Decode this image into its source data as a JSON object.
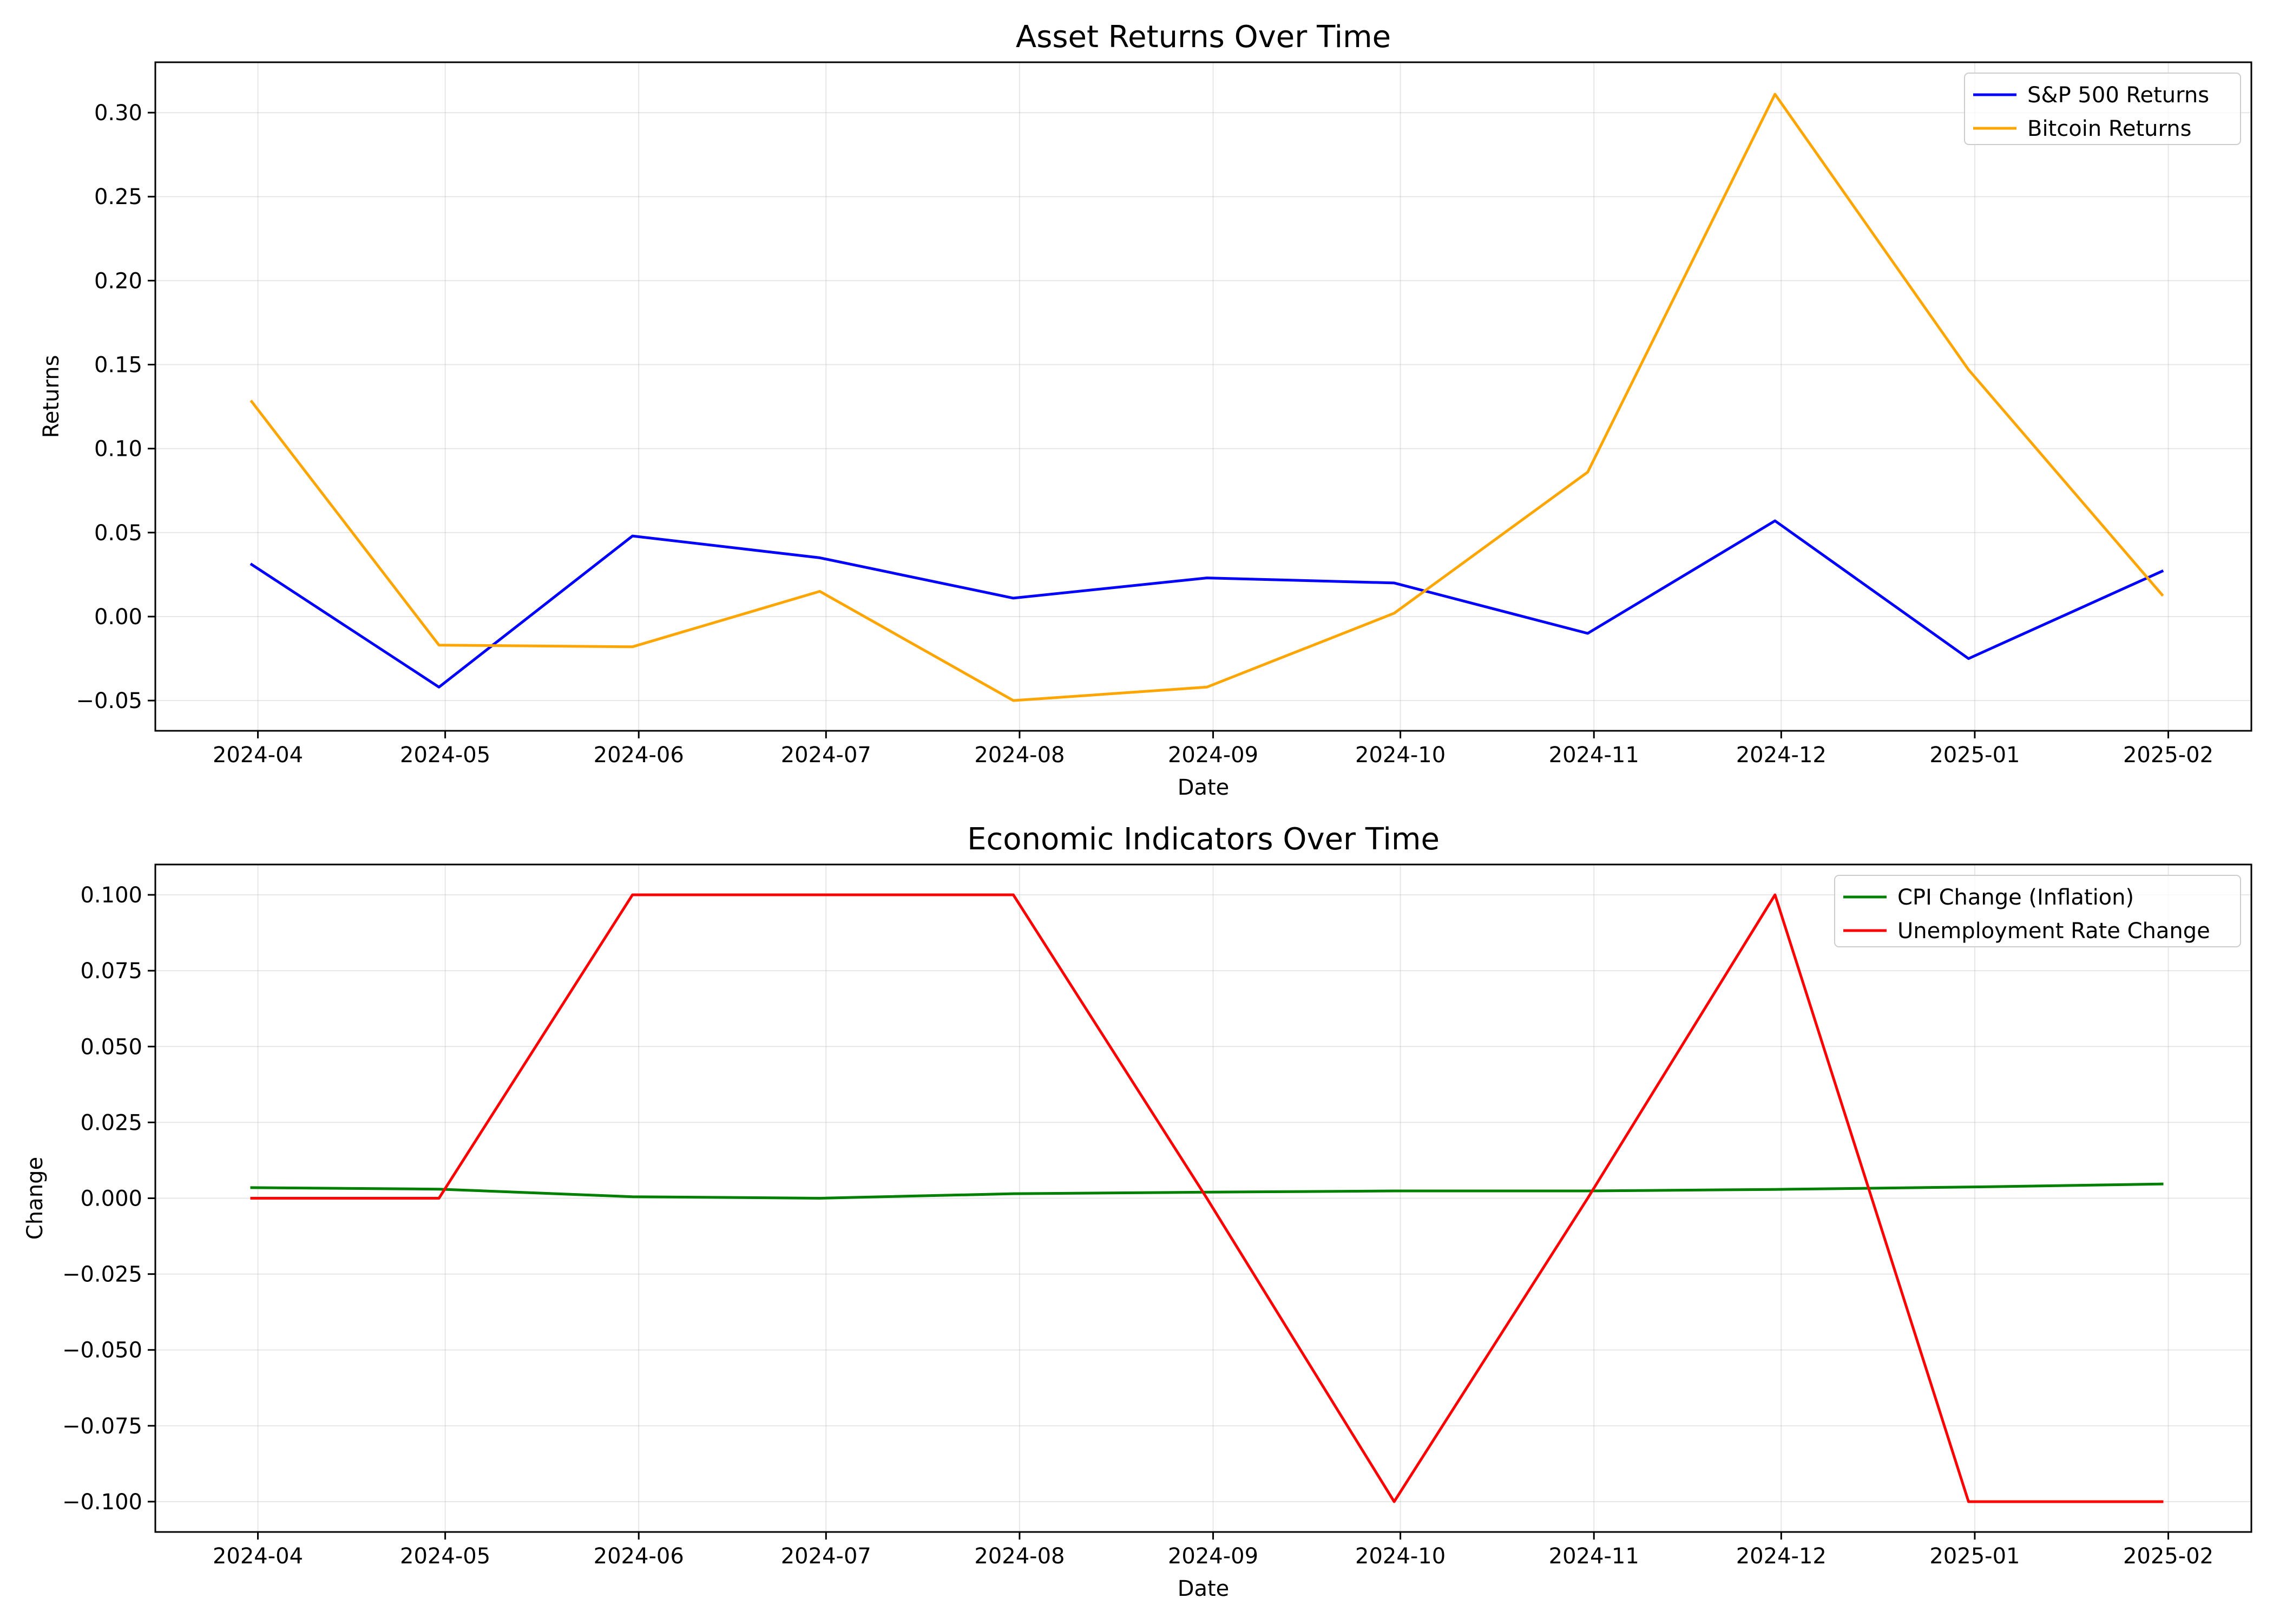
{
  "chart_data": [
    {
      "type": "line",
      "title": "Asset Returns Over Time",
      "xlabel": "Date",
      "ylabel": "Returns",
      "x_tick_labels": [
        "2024-04",
        "2024-05",
        "2024-06",
        "2024-07",
        "2024-08",
        "2024-09",
        "2024-10",
        "2024-11",
        "2024-12",
        "2025-01",
        "2025-02"
      ],
      "y_tick_labels": [
        "−0.05",
        "0.00",
        "0.05",
        "0.10",
        "0.15",
        "0.20",
        "0.25",
        "0.30"
      ],
      "y_ticks": [
        -0.05,
        0.0,
        0.05,
        0.1,
        0.15,
        0.2,
        0.25,
        0.3
      ],
      "ylim": [
        -0.068,
        0.33
      ],
      "x": [
        "2024-03-31",
        "2024-04-30",
        "2024-05-31",
        "2024-06-30",
        "2024-07-31",
        "2024-08-31",
        "2024-09-30",
        "2024-10-31",
        "2024-11-30",
        "2024-12-31",
        "2025-01-31"
      ],
      "grid": true,
      "legend_position": "top-right",
      "series": [
        {
          "name": "S&P 500 Returns",
          "color": "#0000ff",
          "values": [
            0.031,
            -0.042,
            0.048,
            0.035,
            0.011,
            0.023,
            0.02,
            -0.01,
            0.057,
            -0.025,
            0.027
          ]
        },
        {
          "name": "Bitcoin Returns",
          "color": "#ffa500",
          "values": [
            0.128,
            -0.017,
            -0.018,
            0.015,
            -0.05,
            -0.042,
            0.002,
            0.086,
            0.311,
            0.147,
            0.013
          ]
        }
      ]
    },
    {
      "type": "line",
      "title": "Economic Indicators Over Time",
      "xlabel": "Date",
      "ylabel": "Change",
      "x_tick_labels": [
        "2024-04",
        "2024-05",
        "2024-06",
        "2024-07",
        "2024-08",
        "2024-09",
        "2024-10",
        "2024-11",
        "2024-12",
        "2025-01",
        "2025-02"
      ],
      "y_tick_labels": [
        "−0.100",
        "−0.075",
        "−0.050",
        "−0.025",
        "0.000",
        "0.025",
        "0.050",
        "0.075",
        "0.100"
      ],
      "y_ticks": [
        -0.1,
        -0.075,
        -0.05,
        -0.025,
        0.0,
        0.025,
        0.05,
        0.075,
        0.1
      ],
      "ylim": [
        -0.11,
        0.11
      ],
      "x": [
        "2024-03-31",
        "2024-04-30",
        "2024-05-31",
        "2024-06-30",
        "2024-07-31",
        "2024-08-31",
        "2024-09-30",
        "2024-10-31",
        "2024-11-30",
        "2024-12-31",
        "2025-01-31"
      ],
      "grid": true,
      "legend_position": "top-right",
      "series": [
        {
          "name": "CPI Change (Inflation)",
          "color": "#008000",
          "values": [
            0.0035,
            0.003,
            0.0005,
            0.0,
            0.0015,
            0.002,
            0.0024,
            0.0024,
            0.0029,
            0.0037,
            0.0047
          ]
        },
        {
          "name": "Unemployment Rate Change",
          "color": "#ff0000",
          "values": [
            0.0,
            0.0,
            0.1,
            0.1,
            0.1,
            0.0,
            -0.1,
            0.0,
            0.1,
            -0.1,
            -0.1
          ]
        }
      ]
    }
  ]
}
